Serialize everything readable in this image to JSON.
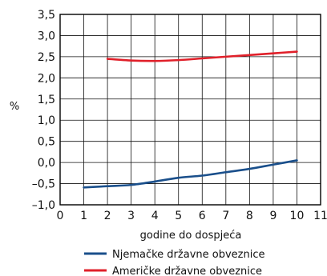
{
  "chart_data": {
    "type": "line",
    "xlabel": "godine do dospjeća",
    "ylabel": "%",
    "xlim": [
      0,
      11
    ],
    "ylim": [
      -1.0,
      3.5
    ],
    "x_ticks": [
      {
        "value": 0,
        "label": "0"
      },
      {
        "value": 1,
        "label": "1"
      },
      {
        "value": 2,
        "label": "2"
      },
      {
        "value": 3,
        "label": "3"
      },
      {
        "value": 4,
        "label": "4"
      },
      {
        "value": 5,
        "label": "5"
      },
      {
        "value": 6,
        "label": "6"
      },
      {
        "value": 7,
        "label": "7"
      },
      {
        "value": 8,
        "label": "8"
      },
      {
        "value": 9,
        "label": "9"
      },
      {
        "value": 10,
        "label": "10"
      },
      {
        "value": 11,
        "label": "11"
      }
    ],
    "y_ticks": [
      {
        "value": 3.5,
        "label": "3,5"
      },
      {
        "value": 3.0,
        "label": "3,0"
      },
      {
        "value": 2.5,
        "label": "2,5"
      },
      {
        "value": 2.0,
        "label": "2,0"
      },
      {
        "value": 1.5,
        "label": "1,5"
      },
      {
        "value": 1.0,
        "label": "1,0"
      },
      {
        "value": 0.5,
        "label": "0,5"
      },
      {
        "value": 0.0,
        "label": "0,0"
      },
      {
        "value": -0.5,
        "label": "–0,5"
      },
      {
        "value": -1.0,
        "label": "–1,0"
      }
    ],
    "grid": true,
    "legend_position": "bottom",
    "series": [
      {
        "name": "Njemačke državne obveznice",
        "color": "#1a4f8b",
        "x": [
          1,
          2,
          3,
          4,
          5,
          6,
          7,
          8,
          9,
          10
        ],
        "y": [
          -0.59,
          -0.56,
          -0.53,
          -0.45,
          -0.36,
          -0.31,
          -0.23,
          -0.15,
          -0.05,
          0.05
        ]
      },
      {
        "name": "Američke državne obveznice",
        "color": "#e0202a",
        "x": [
          2,
          3,
          4,
          5,
          6,
          7,
          8,
          9,
          10
        ],
        "y": [
          2.45,
          2.41,
          2.4,
          2.42,
          2.46,
          2.5,
          2.54,
          2.58,
          2.62
        ]
      }
    ]
  }
}
